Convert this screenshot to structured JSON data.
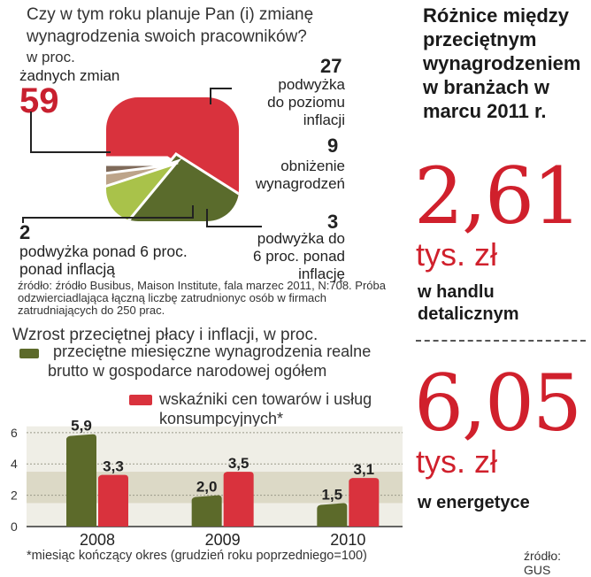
{
  "survey": {
    "question": "Czy w tym roku planuje Pan (i) zmianę wynagrodzenia swoich pracowników?",
    "unit": "w proc.",
    "source": "źródło: źródło Busibus, Maison Institute, fala marzec 2011, N:708. Próba odzwierciadlająca łączną liczbę zatrudnionyc osób w firmach zatrudniających do 250 prac."
  },
  "chart_data": [
    {
      "type": "pie",
      "title": "Czy w tym roku planuje Pan (i) zmianę wynagrodzenia swoich pracowników?",
      "unit": "w proc.",
      "slices": [
        {
          "label": "żadnych zmian",
          "value": 59,
          "color": "#d9323d"
        },
        {
          "label": "podwyżka do poziomu inflacji",
          "value": 27,
          "color": "#5a6b2c"
        },
        {
          "label": "obniżenie wynagrodzeń",
          "value": 9,
          "color": "#a9c24a"
        },
        {
          "label": "podwyżka do 6 proc. ponad inflację",
          "value": 3,
          "color": "#bda48a"
        },
        {
          "label": "podwyżka ponad 6 proc. ponad inflacją",
          "value": 2,
          "color": "#7f6a5a"
        }
      ]
    },
    {
      "type": "bar",
      "title": "Wzrost przeciętnej płacy i inflacji, w proc.",
      "categories": [
        "2008",
        "2009",
        "2010"
      ],
      "series": [
        {
          "name": "przeciętne miesięczne wynagrodzenia realne brutto w gospodarce narodowej ogółem",
          "values": [
            5.9,
            2.0,
            1.5
          ],
          "color": "#5c6a2a"
        },
        {
          "name": "wskaźniki cen towarów i usług konsumpcyjnych*",
          "values": [
            3.3,
            3.5,
            3.1
          ],
          "color": "#d9323d"
        }
      ],
      "value_labels": [
        [
          "5,9",
          "2,0",
          "1,5"
        ],
        [
          "3,3",
          "3,5",
          "3,1"
        ]
      ],
      "yticks": [
        "0",
        "2",
        "4",
        "6"
      ],
      "ylim": [
        0,
        6.5
      ],
      "target_band": [
        1.5,
        3.5
      ]
    }
  ],
  "bar_chart": {
    "title": "Wzrost przeciętnej płacy i inflacji, w proc.",
    "legend1": "przeciętne miesięczne wynagrodzenia realne brutto w gospodarce narodowej ogółem",
    "legend2": "wskaźniki cen towarów i usług konsumpcyjnych*",
    "footnote": "*miesiąc kończący okres (grudzień roku poprzedniego=100)"
  },
  "pie_labels": {
    "s0_label": "żadnych zmian",
    "s0_value": "59",
    "s1_value": "27",
    "s1_l1": "podwyżka",
    "s1_l2": "do poziomu",
    "s1_l3": "inflacji",
    "s2_value": "9",
    "s2_l1": "obniżenie",
    "s2_l2": "wynagrodzeń",
    "s3_value": "3",
    "s3_l1": "podwyżka do",
    "s3_l2": "6 proc. ponad",
    "s3_l3": "inflację",
    "s4_value": "2",
    "s4_l1": "podwyżka ponad 6 proc.",
    "s4_l2": "ponad inflacją"
  },
  "right_panel": {
    "title": "Różnice między przeciętnym wynagrodzeniem w branżach w marcu 2011 r.",
    "value1": "2,61",
    "unit1": "tys. zł",
    "sector1": "w handlu detalicznym",
    "value2": "6,05",
    "unit2": "tys. zł",
    "sector2": "w energetyce",
    "source": "źródło: GUS"
  }
}
